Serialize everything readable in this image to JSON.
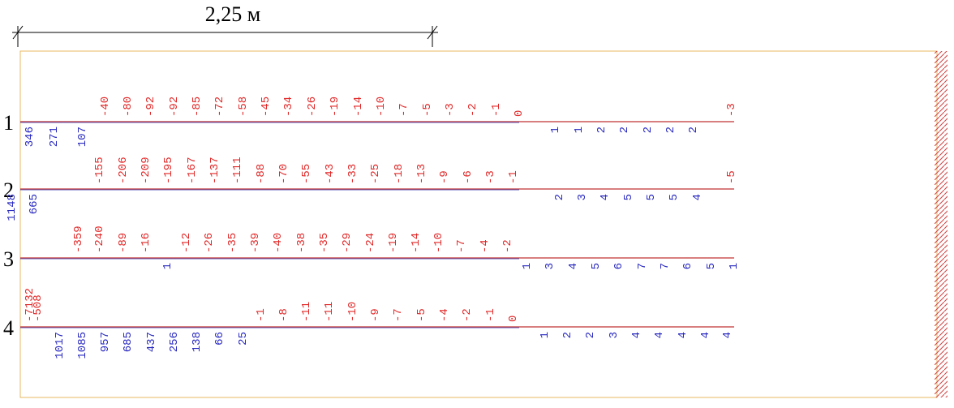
{
  "dimension": {
    "label": "2,25 м"
  },
  "rows": [
    {
      "label": "1",
      "top": [
        "-40",
        "-80",
        "-92",
        "-92",
        "-85",
        "-72",
        "-58",
        "-45",
        "-34",
        "-26",
        "-19",
        "-14",
        "-10",
        "-7",
        "-5",
        "-3",
        "-2",
        "-1",
        "0",
        "-3"
      ],
      "bottom": [
        "346",
        "271",
        "107",
        "1",
        "1",
        "2",
        "2",
        "2",
        "2",
        "2"
      ]
    },
    {
      "label": "2",
      "top": [
        "-155",
        "-206",
        "-209",
        "-195",
        "-167",
        "-137",
        "-111",
        "-88",
        "-70",
        "-55",
        "-43",
        "-33",
        "-25",
        "-18",
        "-13",
        "-9",
        "-6",
        "-3",
        "-1",
        "-5"
      ],
      "bottom": [
        "1148",
        "665",
        "2",
        "3",
        "4",
        "5",
        "5",
        "5",
        "4"
      ]
    },
    {
      "label": "3",
      "top": [
        "-359",
        "-240",
        "-89",
        "-16",
        "-12",
        "-26",
        "-35",
        "-39",
        "-40",
        "-38",
        "-35",
        "-29",
        "-24",
        "-19",
        "-14",
        "-10",
        "-7",
        "-4",
        "-2"
      ],
      "bottom": [
        "1",
        "1",
        "3",
        "4",
        "5",
        "6",
        "7",
        "7",
        "6",
        "5",
        "1"
      ]
    },
    {
      "label": "4",
      "top": [
        "-7132",
        "-508",
        "-1",
        "-8",
        "-11",
        "-11",
        "-10",
        "-9",
        "-7",
        "-5",
        "-4",
        "-2",
        "-1",
        "0"
      ],
      "bottom": [
        "1017",
        "1085",
        "957",
        "685",
        "437",
        "256",
        "138",
        "66",
        "25",
        "1",
        "2",
        "2",
        "3",
        "4",
        "4",
        "4",
        "4",
        "4"
      ]
    }
  ]
}
